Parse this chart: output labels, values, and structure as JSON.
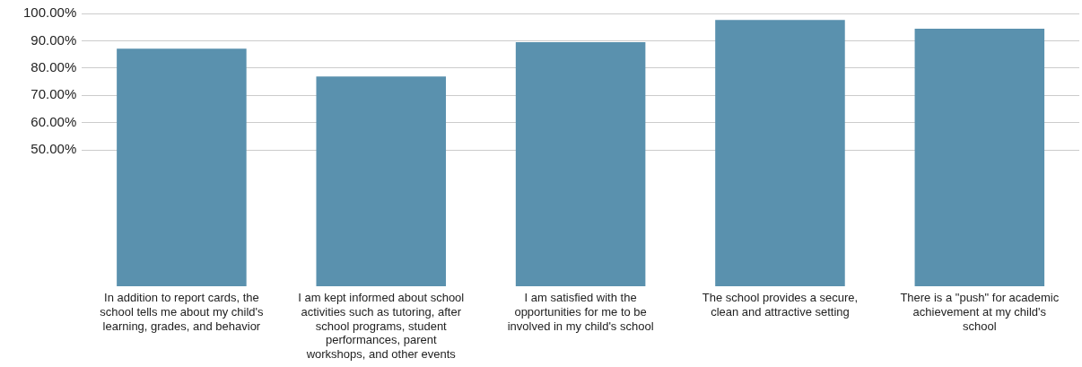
{
  "chart_data": {
    "type": "bar",
    "categories": [
      "In addition to report cards, the school tells me about my child's learning, grades, and behavior",
      "I am kept informed about school activities such as tutoring, after school programs, student performances, parent workshops, and other events",
      "I am satisfied with the opportunities for me to be involved in my child's school",
      "The school provides a secure, clean and attractive setting",
      "There is a \"push\" for academic achievement at my child's school"
    ],
    "values": [
      87.1,
      76.9,
      89.5,
      97.6,
      94.4
    ],
    "color": "#5a91ae",
    "ylim": [
      0,
      100
    ],
    "yticks": [
      {
        "value": 50,
        "label": "50.00%"
      },
      {
        "value": 60,
        "label": "60.00%"
      },
      {
        "value": 70,
        "label": "70.00%"
      },
      {
        "value": 80,
        "label": "80.00%"
      },
      {
        "value": 90,
        "label": "90.00%"
      },
      {
        "value": 100,
        "label": "100.00%"
      }
    ],
    "grid": "y",
    "legend": false
  }
}
